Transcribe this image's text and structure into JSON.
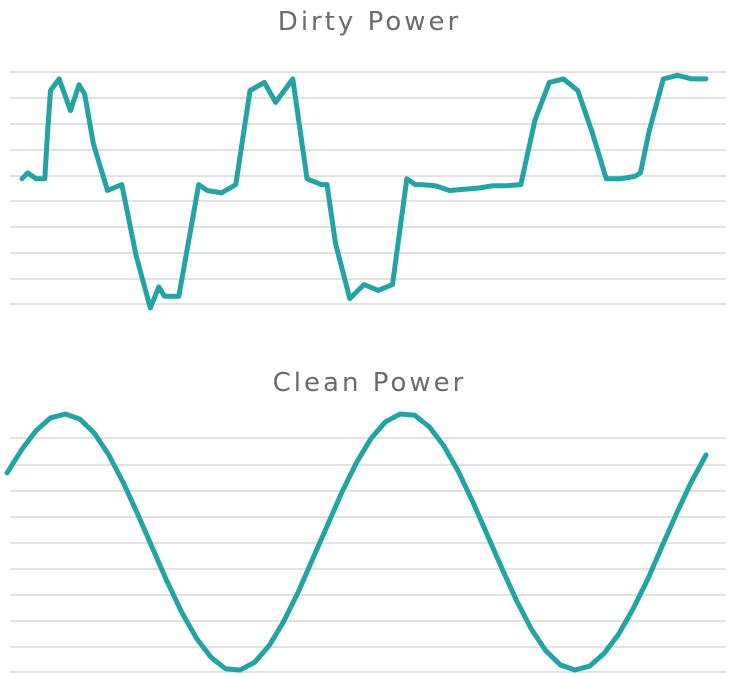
{
  "chart_data": [
    {
      "type": "line",
      "title": "Dirty Power",
      "xlabel": "",
      "ylabel": "",
      "grid": true,
      "legend": "none",
      "ylim": [
        -1.0,
        1.0
      ],
      "xlim": [
        0,
        2.4
      ],
      "series": [
        {
          "color": "#23a3a3",
          "x": [
            0.0,
            0.02,
            0.05,
            0.08,
            0.09,
            0.1,
            0.13,
            0.17,
            0.2,
            0.2,
            0.22,
            0.25,
            0.3,
            0.35,
            0.4,
            0.45,
            0.48,
            0.5,
            0.55,
            0.62,
            0.65,
            0.7,
            0.75,
            0.8,
            0.85,
            0.89,
            0.92,
            0.95,
            1.0,
            1.05,
            1.07,
            1.1,
            1.15,
            1.2,
            1.25,
            1.3,
            1.35,
            1.38,
            1.4,
            1.45,
            1.5,
            1.6,
            1.65,
            1.7,
            1.75,
            1.8,
            1.85,
            1.9,
            1.95,
            2.0,
            2.05,
            2.1,
            2.15,
            2.17,
            2.2,
            2.25,
            2.3,
            2.35,
            2.4
          ],
          "values": [
            0.1,
            0.15,
            0.1,
            0.1,
            0.5,
            0.85,
            0.95,
            0.68,
            0.9,
            0.9,
            0.82,
            0.4,
            0.0,
            0.05,
            -0.55,
            -1.0,
            -0.82,
            -0.9,
            -0.9,
            0.05,
            0.0,
            -0.02,
            0.05,
            0.85,
            0.92,
            0.75,
            0.85,
            0.95,
            0.1,
            0.05,
            0.05,
            -0.45,
            -0.92,
            -0.8,
            -0.85,
            -0.8,
            0.1,
            0.05,
            0.05,
            0.04,
            0.0,
            0.02,
            0.04,
            0.04,
            0.05,
            0.6,
            0.92,
            0.95,
            0.85,
            0.5,
            0.1,
            0.1,
            0.12,
            0.15,
            0.5,
            0.95,
            0.98,
            0.95,
            0.95
          ]
        }
      ]
    },
    {
      "type": "line",
      "title": "Clean Power",
      "xlabel": "",
      "ylabel": "",
      "grid": true,
      "legend": "none",
      "ylim": [
        -1.0,
        1.0
      ],
      "xlim": [
        0,
        2.4
      ],
      "series": [
        {
          "color": "#23a3a3",
          "x": [
            0.0,
            0.05,
            0.1,
            0.15,
            0.2,
            0.25,
            0.3,
            0.35,
            0.4,
            0.45,
            0.5,
            0.55,
            0.6,
            0.65,
            0.7,
            0.75,
            0.8,
            0.85,
            0.9,
            0.95,
            1.0,
            1.05,
            1.1,
            1.15,
            1.2,
            1.25,
            1.3,
            1.35,
            1.4,
            1.45,
            1.5,
            1.55,
            1.6,
            1.65,
            1.7,
            1.75,
            1.8,
            1.85,
            1.9,
            1.95,
            2.0,
            2.05,
            2.1,
            2.15,
            2.2,
            2.25,
            2.3,
            2.35,
            2.4
          ],
          "values": [
            0.54,
            0.72,
            0.87,
            0.97,
            1.0,
            0.96,
            0.85,
            0.68,
            0.46,
            0.21,
            -0.05,
            -0.31,
            -0.55,
            -0.75,
            -0.9,
            -0.99,
            -1.0,
            -0.94,
            -0.81,
            -0.62,
            -0.39,
            -0.13,
            0.13,
            0.39,
            0.62,
            0.81,
            0.94,
            1.0,
            0.99,
            0.9,
            0.75,
            0.55,
            0.31,
            0.05,
            -0.21,
            -0.46,
            -0.68,
            -0.85,
            -0.96,
            -1.0,
            -0.97,
            -0.87,
            -0.72,
            -0.52,
            -0.29,
            -0.03,
            0.23,
            0.47,
            0.68
          ]
        }
      ]
    }
  ]
}
